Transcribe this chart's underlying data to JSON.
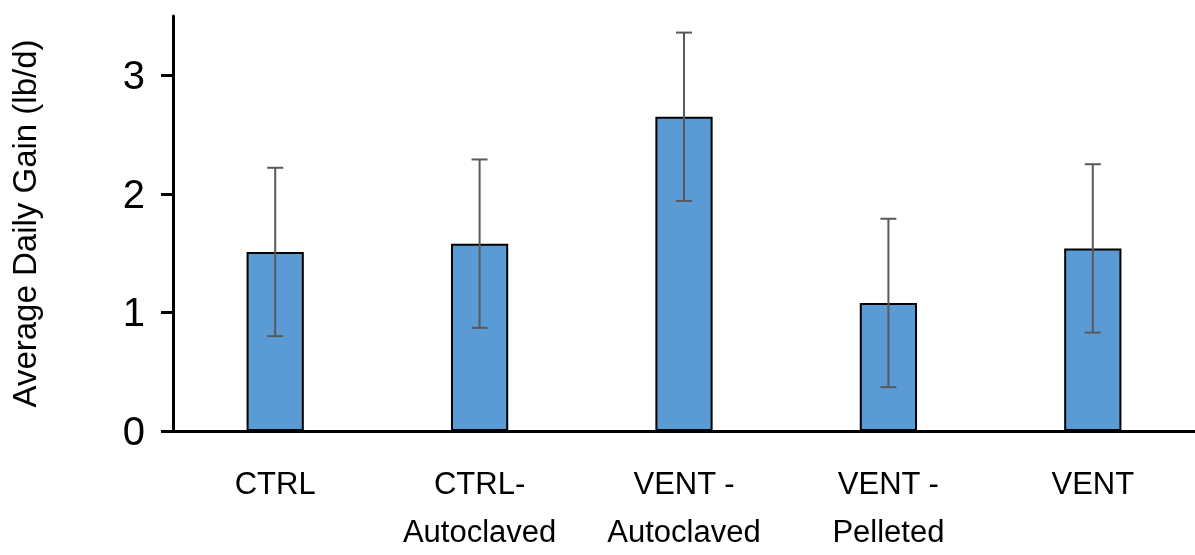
{
  "chart_data": {
    "type": "bar",
    "ylabel": "Average Daily Gain (lb/d)",
    "categories": [
      "CTRL",
      "CTRL-Autoclaved",
      "VENT - Autoclaved",
      "VENT - Pelleted",
      "VENT"
    ],
    "values": [
      1.51,
      1.58,
      2.65,
      1.08,
      1.54
    ],
    "errors": [
      0.71,
      0.71,
      0.71,
      0.71,
      0.71
    ],
    "color": "#5b9bd5",
    "ylim": [
      0,
      3.5
    ],
    "yticks": [
      0,
      1,
      2,
      3
    ],
    "grid": false
  }
}
